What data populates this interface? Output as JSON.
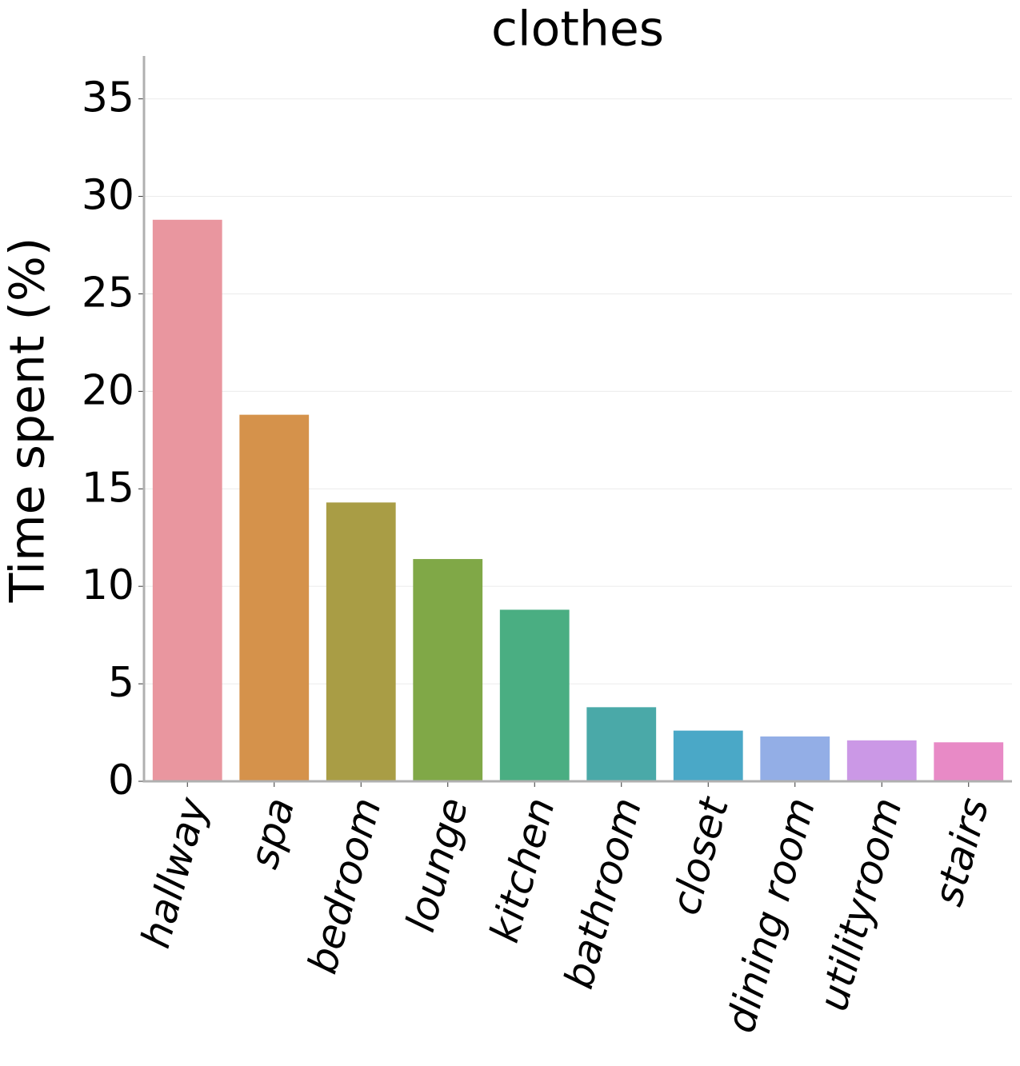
{
  "chart_data": {
    "type": "bar",
    "title": "clothes",
    "y_label": "Time spent (%)",
    "categories": [
      "hallway",
      "spa",
      "bedroom",
      "lounge",
      "kitchen",
      "bathroom",
      "closet",
      "dining room",
      "utilityroom",
      "stairs"
    ],
    "values": [
      28.8,
      18.8,
      14.3,
      11.4,
      8.8,
      3.8,
      2.6,
      2.3,
      2.1,
      2.0
    ],
    "colors": [
      "#e9969f",
      "#d5924b",
      "#a99d45",
      "#80a847",
      "#4aae82",
      "#4aa9a8",
      "#4aa8c7",
      "#93aee6",
      "#cb98e6",
      "#e88ac6"
    ],
    "ylim": [
      0,
      37.2
    ],
    "yticks": [
      0,
      5,
      10,
      15,
      20,
      25,
      30,
      35
    ],
    "grid": true
  }
}
